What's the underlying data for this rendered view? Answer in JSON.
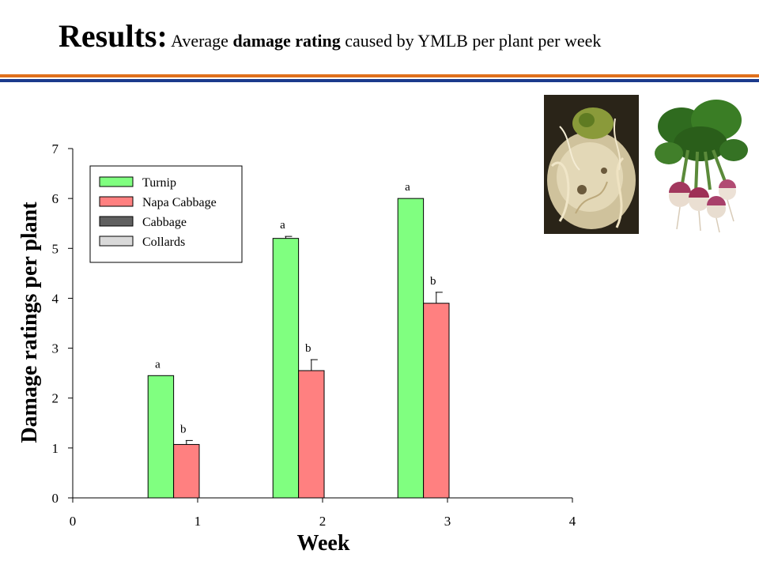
{
  "slide": {
    "title_lead": "Results:",
    "title_pre": " Average ",
    "title_bold": "damage rating",
    "title_post": " caused by YMLB per plant per week"
  },
  "colors": {
    "rule_orange": "#e0701c",
    "rule_blue": "#1b3a8c",
    "turnip": "#80ff80",
    "napa_cabbage": "#ff8080",
    "cabbage": "#606060",
    "collards": "#d9d9d9"
  },
  "images": [
    {
      "name": "damaged-root-photo",
      "depicts": "root damaged by larvae"
    },
    {
      "name": "turnip-bunch-photo",
      "depicts": "bunch of purple-top turnips"
    }
  ],
  "chart_data": {
    "type": "bar",
    "title": "",
    "xlabel": "Week",
    "ylabel": "Damage ratings per plant",
    "xlim": [
      0,
      4
    ],
    "ylim": [
      0,
      7
    ],
    "xticks": [
      "0",
      "1",
      "2",
      "3",
      "4"
    ],
    "yticks": [
      "0",
      "1",
      "2",
      "3",
      "4",
      "5",
      "6",
      "7"
    ],
    "grid": false,
    "legend_position": "top-left",
    "legend": [
      "Turnip",
      "Napa Cabbage",
      "Cabbage",
      "Collards"
    ],
    "categories": [
      1,
      2,
      3
    ],
    "series": [
      {
        "name": "Turnip",
        "values": [
          2.45,
          5.2,
          6.0
        ],
        "errors": [
          0,
          0.04,
          0
        ],
        "letters": [
          "a",
          "a",
          "a"
        ]
      },
      {
        "name": "Napa Cabbage",
        "values": [
          1.07,
          2.55,
          3.9
        ],
        "errors": [
          0.08,
          0.22,
          0.22
        ],
        "letters": [
          "b",
          "b",
          "b"
        ]
      },
      {
        "name": "Cabbage",
        "values": [
          0,
          0,
          0
        ]
      },
      {
        "name": "Collards",
        "values": [
          0,
          0,
          0
        ]
      }
    ]
  }
}
